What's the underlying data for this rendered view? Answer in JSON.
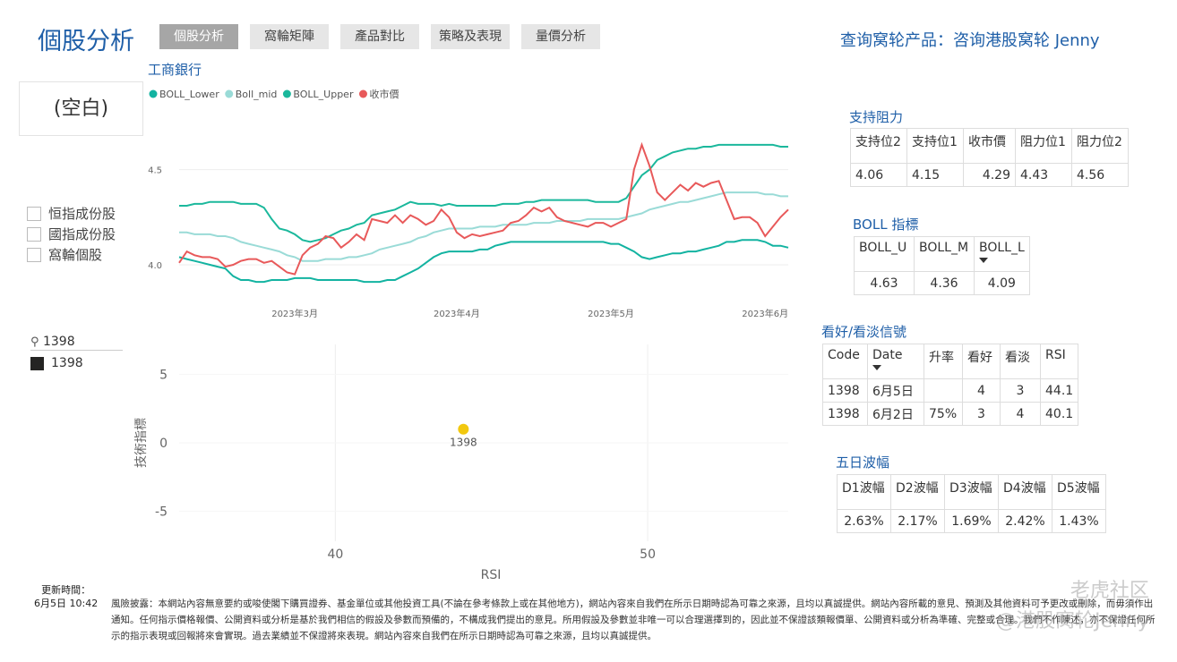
{
  "header": {
    "title": "個股分析",
    "tabs": [
      "個股分析",
      "窩輪矩陣",
      "產品對比",
      "策略及表現",
      "量價分析"
    ],
    "link": "查询窝轮产品：咨询港股窝轮 Jenny"
  },
  "card": "(空白)",
  "filters": [
    "恒指成份股",
    "國指成份股",
    "窩輪個股"
  ],
  "search": {
    "query": "1398",
    "items": [
      "1398"
    ]
  },
  "chart_data": [
    {
      "type": "line",
      "title": "工商銀行",
      "legend": "top-left",
      "categories": [
        null,
        null,
        null,
        null,
        null,
        null,
        null,
        null,
        null,
        null,
        null,
        null,
        null,
        null,
        null,
        "2023年3月",
        null,
        null,
        null,
        null,
        null,
        null,
        null,
        null,
        null,
        null,
        null,
        null,
        null,
        null,
        null,
        null,
        null,
        null,
        null,
        null,
        "2023年4月",
        null,
        null,
        null,
        null,
        null,
        null,
        null,
        null,
        null,
        null,
        null,
        null,
        null,
        null,
        null,
        null,
        null,
        null,
        null,
        "2023年5月",
        null,
        null,
        null,
        null,
        null,
        null,
        null,
        null,
        null,
        null,
        null,
        null,
        null,
        null,
        null,
        null,
        null,
        null,
        null,
        "2023年6月",
        null,
        null,
        null
      ],
      "ylim": [
        3.84,
        4.78
      ],
      "yticks": [
        {
          "value": 4,
          "label": "4.0"
        },
        4.5
      ],
      "grid": true,
      "series": [
        {
          "name": "BOLL_Lower",
          "color": "#13b3a1",
          "values": [
            4.04,
            4.03,
            4.02,
            4.01,
            4.0,
            3.99,
            3.98,
            3.94,
            3.92,
            3.92,
            3.91,
            3.91,
            3.92,
            3.92,
            3.92,
            3.93,
            3.93,
            3.93,
            3.92,
            3.92,
            3.92,
            3.92,
            3.92,
            3.92,
            3.91,
            3.91,
            3.91,
            3.92,
            3.92,
            3.94,
            3.96,
            3.98,
            4.01,
            4.04,
            4.06,
            4.07,
            4.07,
            4.07,
            4.07,
            4.08,
            4.08,
            4.1,
            4.11,
            4.12,
            4.12,
            4.12,
            4.12,
            4.12,
            4.12,
            4.12,
            4.12,
            4.12,
            4.12,
            4.12,
            4.12,
            4.12,
            4.11,
            4.11,
            4.09,
            4.07,
            4.04,
            4.03,
            4.04,
            4.05,
            4.06,
            4.06,
            4.07,
            4.07,
            4.08,
            4.09,
            4.1,
            4.12,
            4.12,
            4.13,
            4.13,
            4.13,
            4.12,
            4.1,
            4.1,
            4.09
          ]
        },
        {
          "name": "Boll_mid",
          "color": "#9adbd7",
          "values": [
            4.17,
            4.17,
            4.16,
            4.16,
            4.16,
            4.15,
            4.15,
            4.14,
            4.12,
            4.11,
            4.1,
            4.09,
            4.08,
            4.07,
            4.05,
            4.04,
            4.02,
            4.02,
            4.02,
            4.03,
            4.03,
            4.03,
            4.04,
            4.04,
            4.05,
            4.06,
            4.08,
            4.09,
            4.1,
            4.11,
            4.12,
            4.14,
            4.15,
            4.17,
            4.18,
            4.19,
            4.19,
            4.19,
            4.19,
            4.2,
            4.2,
            4.2,
            4.21,
            4.21,
            4.21,
            4.21,
            4.22,
            4.22,
            4.22,
            4.23,
            4.23,
            4.23,
            4.23,
            4.24,
            4.24,
            4.24,
            4.24,
            4.24,
            4.25,
            4.26,
            4.27,
            4.29,
            4.3,
            4.31,
            4.32,
            4.33,
            4.33,
            4.34,
            4.35,
            4.36,
            4.37,
            4.38,
            4.38,
            4.38,
            4.38,
            4.38,
            4.37,
            4.37,
            4.36,
            4.36
          ]
        },
        {
          "name": "BOLL_Upper",
          "color": "#1bb89c",
          "values": [
            4.31,
            4.31,
            4.32,
            4.32,
            4.33,
            4.33,
            4.33,
            4.33,
            4.32,
            4.32,
            4.32,
            4.3,
            4.24,
            4.19,
            4.18,
            4.16,
            4.13,
            4.12,
            4.13,
            4.14,
            4.16,
            4.18,
            4.19,
            4.21,
            4.22,
            4.26,
            4.27,
            4.28,
            4.29,
            4.31,
            4.33,
            4.32,
            4.32,
            4.32,
            4.31,
            4.32,
            4.31,
            4.31,
            4.31,
            4.31,
            4.31,
            4.31,
            4.32,
            4.32,
            4.32,
            4.33,
            4.33,
            4.34,
            4.34,
            4.34,
            4.34,
            4.34,
            4.34,
            4.34,
            4.33,
            4.33,
            4.33,
            4.33,
            4.35,
            4.41,
            4.47,
            4.5,
            4.55,
            4.57,
            4.59,
            4.6,
            4.61,
            4.61,
            4.62,
            4.62,
            4.63,
            4.63,
            4.63,
            4.63,
            4.63,
            4.63,
            4.63,
            4.63,
            4.62,
            4.62
          ]
        },
        {
          "name": "收市價",
          "color": "#e8595a",
          "values": [
            4.01,
            4.07,
            4.05,
            4.04,
            4.04,
            4.03,
            3.99,
            4.0,
            4.02,
            4.03,
            4.03,
            4.01,
            4.02,
            3.99,
            3.96,
            3.95,
            4.05,
            4.09,
            4.11,
            4.15,
            4.14,
            4.09,
            4.12,
            4.16,
            4.13,
            4.24,
            4.23,
            4.22,
            4.26,
            4.22,
            4.26,
            4.24,
            4.21,
            4.23,
            4.29,
            4.25,
            4.17,
            4.14,
            4.16,
            4.15,
            4.16,
            4.17,
            4.18,
            4.22,
            4.23,
            4.26,
            4.3,
            4.28,
            4.3,
            4.25,
            4.23,
            4.22,
            4.21,
            4.2,
            4.22,
            4.22,
            4.2,
            4.22,
            4.24,
            4.5,
            4.63,
            4.52,
            4.38,
            4.34,
            4.38,
            4.42,
            4.39,
            4.43,
            4.41,
            4.43,
            4.44,
            4.34,
            4.24,
            4.25,
            4.25,
            4.22,
            4.15,
            4.2,
            4.25,
            4.29
          ]
        }
      ]
    },
    {
      "type": "scatter",
      "x_label": "RSI",
      "y_label": "技術指標",
      "color": "#f2c80f",
      "x": [
        44.1
      ],
      "values": [
        1
      ],
      "point_labels": [
        "1398"
      ],
      "xlim": [
        35,
        54.5
      ],
      "xticks": [
        40,
        50
      ],
      "ylim": [
        -7.2,
        7.2
      ],
      "yticks": [
        -5,
        0,
        5
      ],
      "grid": true
    }
  ],
  "tables": [
    {
      "title": "支持阻力",
      "headers": [
        "支持位2",
        "支持位1",
        "收市價",
        "阻力位1",
        "阻力位2"
      ],
      "rows": [
        [
          4.06,
          4.15,
          4.29,
          4.43,
          4.56
        ]
      ]
    },
    {
      "title": "BOLL 指標",
      "headers": [
        "BOLL_U",
        "BOLL_M",
        "BOLL_L"
      ],
      "rows": [
        [
          4.63,
          4.36,
          4.09
        ]
      ]
    },
    {
      "title": "看好/看淡信號",
      "headers": [
        "Code",
        "Date",
        "升率",
        "看好",
        "看淡",
        "RSI"
      ],
      "rows": [
        [
          1398,
          "6月5日",
          null,
          4,
          3,
          44.1
        ],
        [
          1398,
          "6月2日",
          "75%",
          3,
          4,
          40.1
        ]
      ]
    },
    {
      "title": "五日波幅",
      "headers": [
        "D1波幅",
        "D2波幅",
        "D3波幅",
        "D4波幅",
        "D5波幅"
      ],
      "rows": [
        [
          "2.63%",
          "2.17%",
          "1.69%",
          "2.42%",
          "1.43%"
        ]
      ]
    }
  ],
  "footer": {
    "update_label": "更新時間：",
    "update_time": "6月5日 10:42",
    "disclaimer": "風險披露：本網站內容無意要約或唆使閣下購買證券、基金單位或其他投資工具(不論在參考條款上或在其他地方)，網站內容來自我們在所示日期時認為可靠之來源，且均以真誠提供。網站內容所載的意見、預測及其他資料可予更改或刪除，而毋須作出通知。任何指示價格報價、公開資料或分析是基於我們相信的假設及參數而預備的，不構成我們提出的意見。所用假設及參數並非唯一可以合理選擇到的，因此並不保證該類報價單、公開資料或分析為準確、完整或合理。我們不作陳述，亦不保證任何所示的指示表現或回報將來會實現。過去業績並不保證將來表現。網站內容來自我們在所示日期時認為可靠之來源，且均以真誠提供。"
  },
  "watermark": [
    "老虎社区",
    "@港股窝轮Jenny"
  ]
}
